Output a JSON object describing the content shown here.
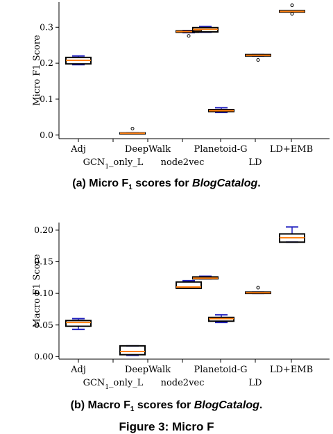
{
  "captions": [
    {
      "prefix": "(a) Micro F",
      "sub": "1",
      "middle": " scores for ",
      "italic": "BlogCatalog",
      "suffix": "."
    },
    {
      "prefix": "(b) Macro F",
      "sub": "1",
      "middle": " scores for ",
      "italic": "BlogCatalog",
      "suffix": "."
    }
  ],
  "figure_caption_partial": "Figure 3: Micro F",
  "colors": {
    "box": "#000000",
    "whisker": "#1f1fbf",
    "median": "#ff7f0e",
    "flier": "#000000"
  },
  "chart_data": [
    {
      "type": "box",
      "ylabel": "Micro F1 Score",
      "ylim": [
        -0.01,
        0.37
      ],
      "yticks": [
        "0.0",
        "0.1",
        "0.2",
        "0.3"
      ],
      "ytick_values": [
        0.0,
        0.1,
        0.2,
        0.3
      ],
      "categories": [
        "Adj",
        "GCN1_only_L",
        "DeepWalk",
        "node2vec",
        "Planetoid-G",
        "LD",
        "LD+EMB"
      ],
      "category_labels": [
        {
          "main": "Adj"
        },
        {
          "main": "GCN",
          "sub": "1",
          "tail": "_only_L"
        },
        {
          "main": "DeepWalk"
        },
        {
          "main": "node2vec"
        },
        {
          "main": "Planetoid-G"
        },
        {
          "main": "LD"
        },
        {
          "main": "LD+EMB"
        }
      ],
      "boxes": [
        {
          "whislo": 0.196,
          "q1": 0.198,
          "med": 0.208,
          "q3": 0.216,
          "whishi": 0.22,
          "fliers": []
        },
        {
          "whislo": 0.004,
          "q1": 0.004,
          "med": 0.005,
          "q3": 0.006,
          "whishi": 0.006,
          "fliers": [
            0.018
          ]
        },
        {
          "whislo": 0.285,
          "q1": 0.286,
          "med": 0.288,
          "q3": 0.29,
          "whishi": 0.291,
          "fliers": [
            0.276
          ]
        },
        {
          "whislo": 0.286,
          "q1": 0.287,
          "med": 0.294,
          "q3": 0.299,
          "whishi": 0.302,
          "fliers": []
        },
        {
          "whislo": 0.063,
          "q1": 0.065,
          "med": 0.068,
          "q3": 0.071,
          "whishi": 0.076,
          "fliers": []
        },
        {
          "whislo": 0.22,
          "q1": 0.22,
          "med": 0.222,
          "q3": 0.224,
          "whishi": 0.224,
          "fliers": [
            0.209
          ]
        },
        {
          "whislo": 0.342,
          "q1": 0.342,
          "med": 0.344,
          "q3": 0.346,
          "whishi": 0.346,
          "fliers": [
            0.337,
            0.361
          ]
        }
      ]
    },
    {
      "type": "box",
      "ylabel": "Macro F1 Score",
      "ylim": [
        -0.004,
        0.212
      ],
      "yticks": [
        "0.00",
        "0.05",
        "0.10",
        "0.15",
        "0.20"
      ],
      "ytick_values": [
        0.0,
        0.05,
        0.1,
        0.15,
        0.2
      ],
      "categories": [
        "Adj",
        "GCN1_only_L",
        "DeepWalk",
        "node2vec",
        "Planetoid-G",
        "LD",
        "LD+EMB"
      ],
      "category_labels": [
        {
          "main": "Adj"
        },
        {
          "main": "GCN",
          "sub": "1",
          "tail": "_only_L"
        },
        {
          "main": "DeepWalk"
        },
        {
          "main": "node2vec"
        },
        {
          "main": "Planetoid-G"
        },
        {
          "main": "LD"
        },
        {
          "main": "LD+EMB"
        }
      ],
      "boxes": [
        {
          "whislo": 0.043,
          "q1": 0.048,
          "med": 0.054,
          "q3": 0.057,
          "whishi": 0.06,
          "fliers": []
        },
        {
          "whislo": 0.002,
          "q1": 0.003,
          "med": 0.008,
          "q3": 0.017,
          "whishi": 0.017,
          "fliers": []
        },
        {
          "whislo": 0.108,
          "q1": 0.108,
          "med": 0.11,
          "q3": 0.118,
          "whishi": 0.12,
          "fliers": []
        },
        {
          "whislo": 0.123,
          "q1": 0.123,
          "med": 0.124,
          "q3": 0.126,
          "whishi": 0.127,
          "fliers": []
        },
        {
          "whislo": 0.054,
          "q1": 0.056,
          "med": 0.06,
          "q3": 0.062,
          "whishi": 0.066,
          "fliers": []
        },
        {
          "whislo": 0.1,
          "q1": 0.1,
          "med": 0.101,
          "q3": 0.102,
          "whishi": 0.102,
          "fliers": [
            0.109
          ]
        },
        {
          "whislo": 0.181,
          "q1": 0.181,
          "med": 0.188,
          "q3": 0.194,
          "whishi": 0.205,
          "fliers": []
        }
      ]
    }
  ]
}
